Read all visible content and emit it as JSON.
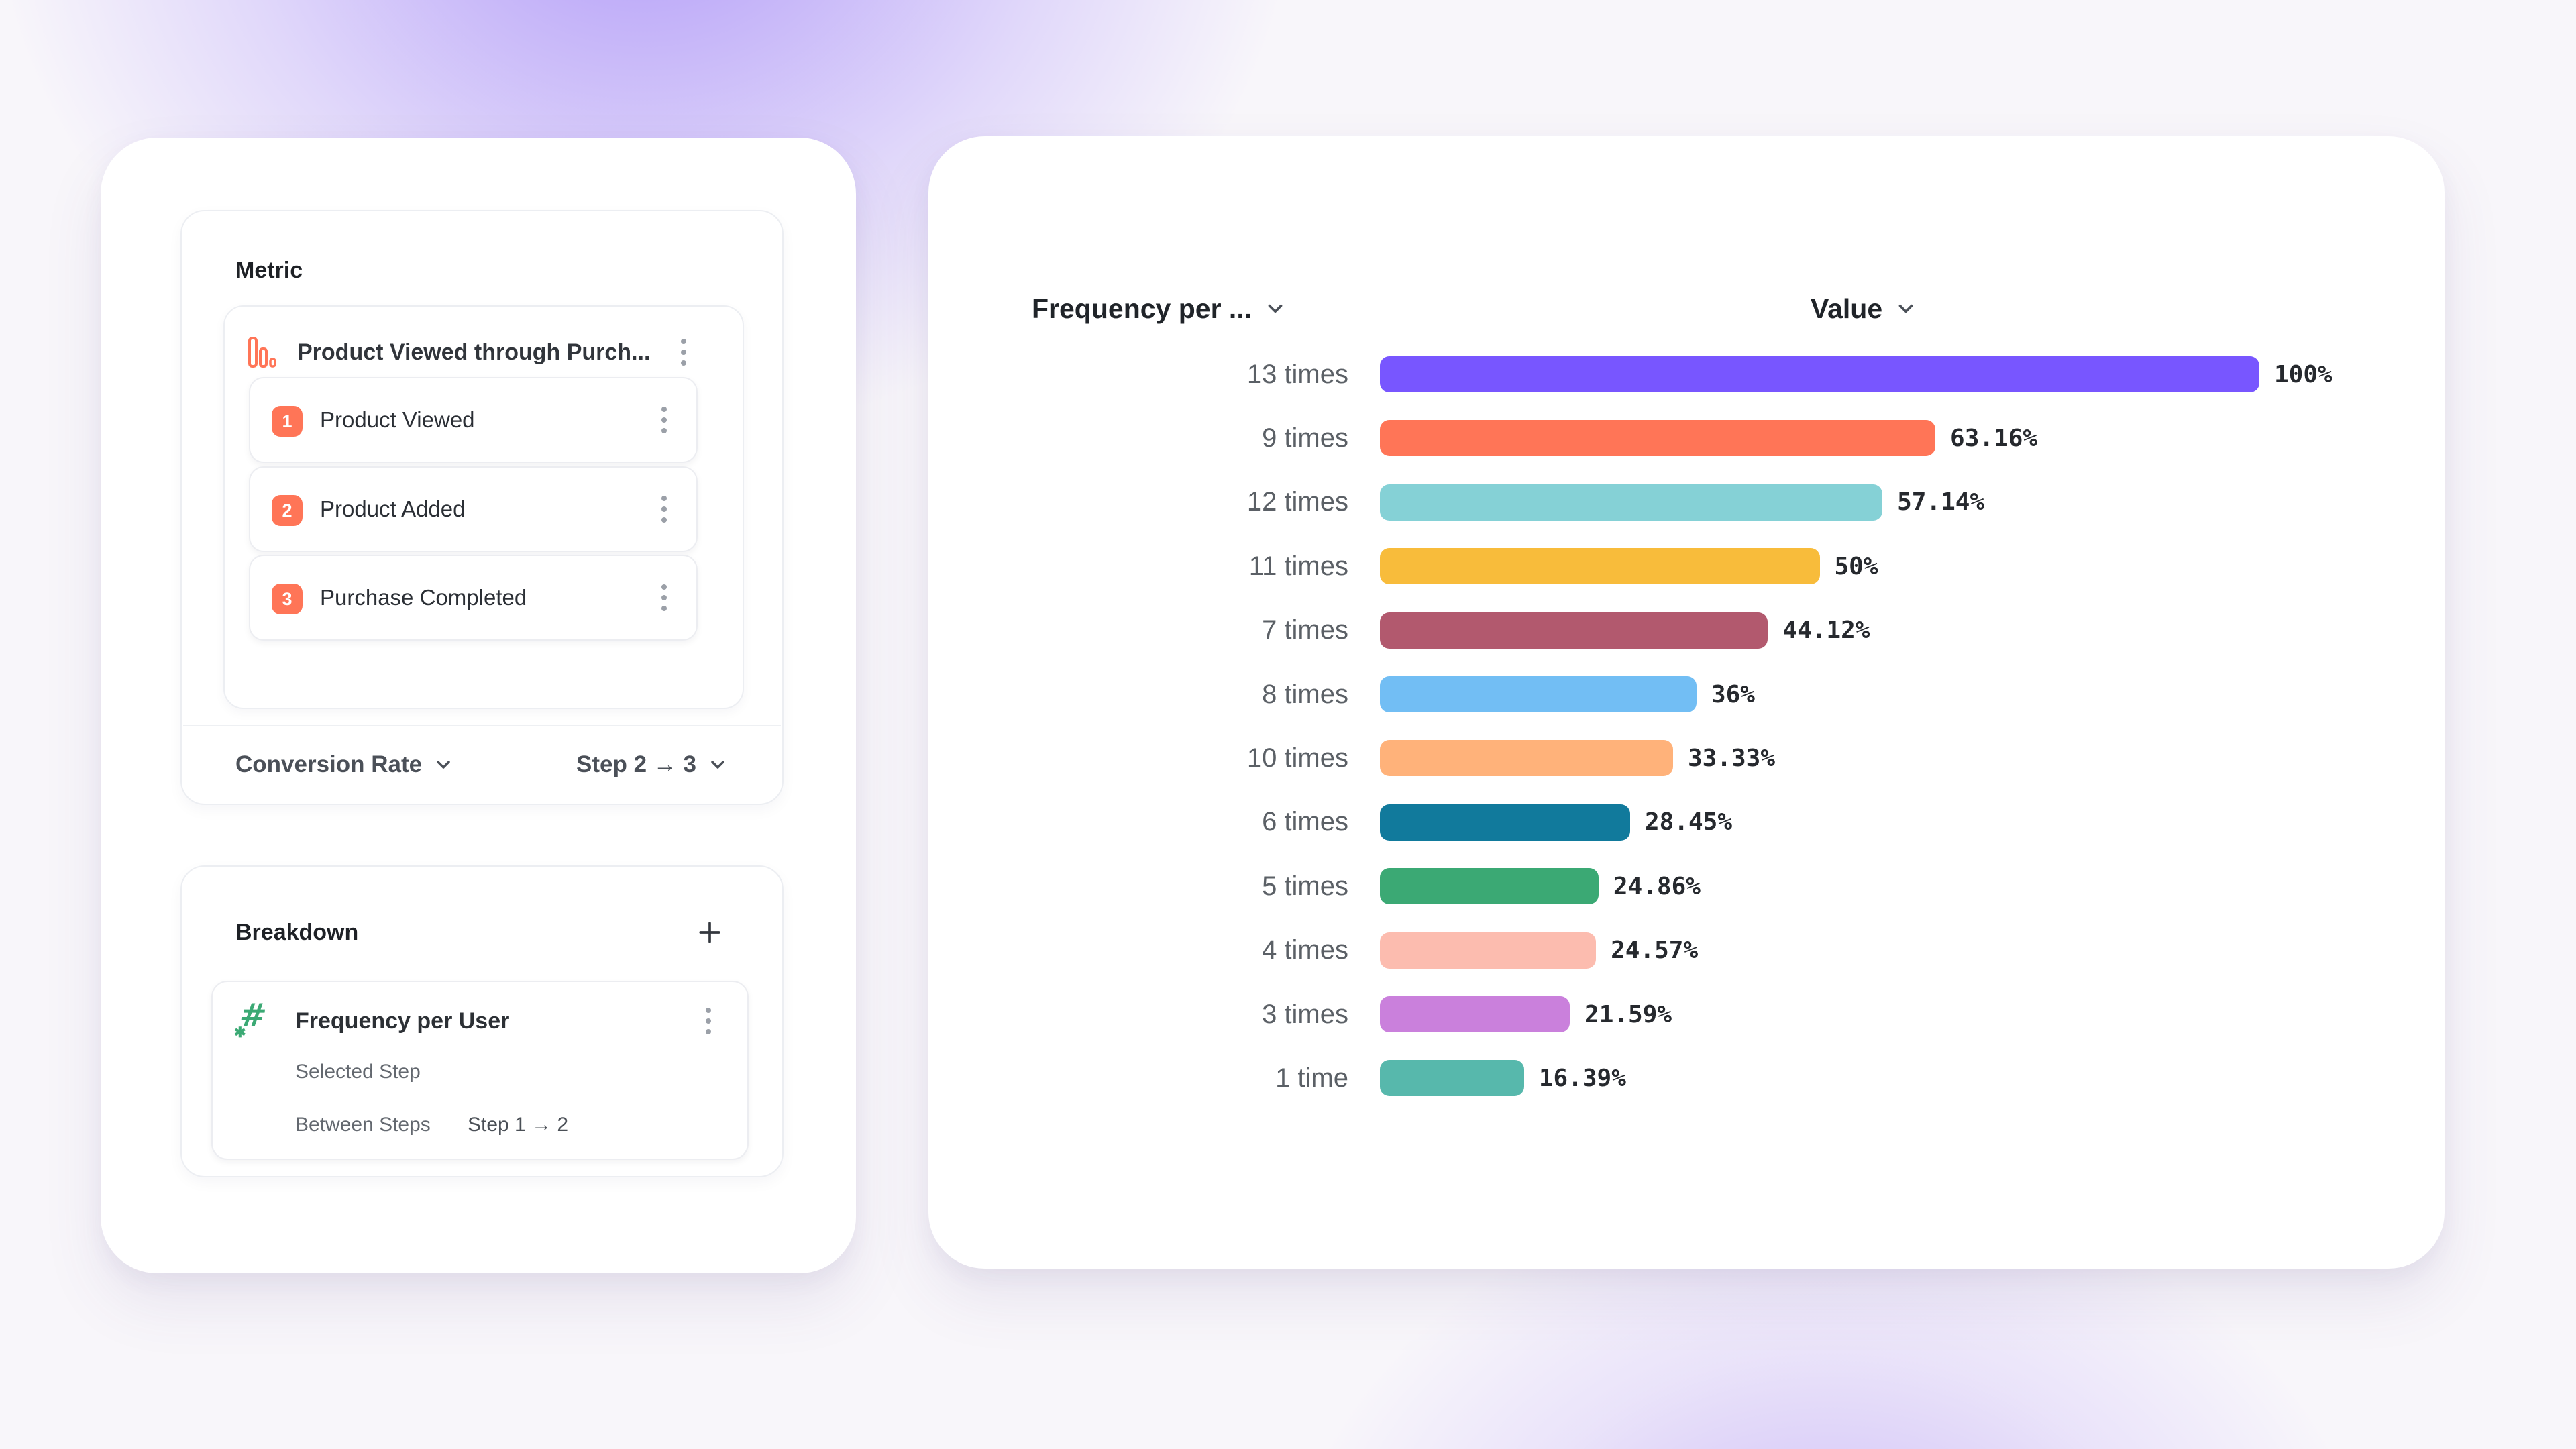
{
  "icons": {
    "hash": "#",
    "spark": "✱"
  },
  "left_panel": {
    "metric": {
      "title": "Metric",
      "funnel": {
        "name": "Product Viewed through Purch...",
        "steps": [
          {
            "num": "1",
            "label": "Product Viewed"
          },
          {
            "num": "2",
            "label": "Product Added"
          },
          {
            "num": "3",
            "label": "Purchase Completed"
          }
        ]
      },
      "conversion": {
        "label": "Conversion Rate",
        "range": "Step 2 → 3"
      }
    },
    "breakdown": {
      "title": "Breakdown",
      "item": {
        "name": "Frequency per User",
        "selected_step_label": "Selected Step",
        "between_steps_label": "Between Steps",
        "between_steps_value": "Step 1 → 2"
      }
    }
  },
  "chart": {
    "column_headers": {
      "category": "Frequency per ...",
      "value": "Value"
    }
  },
  "chart_data": {
    "type": "bar",
    "orientation": "horizontal",
    "title": "",
    "xlabel": "",
    "ylabel": "Frequency per User",
    "xlim": [
      0,
      100
    ],
    "grid": false,
    "categories": [
      "13 times",
      "9 times",
      "12 times",
      "11 times",
      "7 times",
      "8 times",
      "10 times",
      "6 times",
      "5 times",
      "4 times",
      "3 times",
      "1 time"
    ],
    "values": [
      100,
      63.16,
      57.14,
      50,
      44.12,
      36,
      33.33,
      28.45,
      24.86,
      24.57,
      21.59,
      16.39
    ],
    "value_labels": [
      "100%",
      "63.16%",
      "57.14%",
      "50%",
      "44.12%",
      "36%",
      "33.33%",
      "28.45%",
      "24.86%",
      "24.57%",
      "21.59%",
      "16.39%"
    ],
    "colors": [
      "#7856FF",
      "#FF7557",
      "#85D1D6",
      "#F8BC3B",
      "#B2596E",
      "#72BEF4",
      "#FFB27A",
      "#117A9C",
      "#3BA974",
      "#FCBCAF",
      "#CA80DC",
      "#57B8AC"
    ]
  }
}
